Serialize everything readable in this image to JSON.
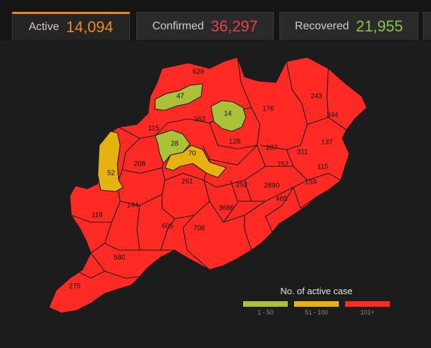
{
  "tabs": [
    {
      "label": "Active",
      "value": "14,094",
      "color": "#f08a1c"
    },
    {
      "label": "Confirmed",
      "value": "36,297",
      "color": "#e8414b"
    },
    {
      "label": "Recovered",
      "value": "21,955",
      "color": "#8cc63f"
    }
  ],
  "colors": {
    "low": "#a9c23a",
    "mid": "#e6b20f",
    "high": "#ff2a23"
  },
  "legend": {
    "title": "No. of active case",
    "items": [
      {
        "label": "1 - 50",
        "color": "#a9c23a"
      },
      {
        "label": "51 - 100",
        "color": "#e6b20f"
      },
      {
        "label": "101+",
        "color": "#ff2a23"
      }
    ]
  },
  "districts": [
    {
      "value": "628",
      "category": "high"
    },
    {
      "value": "47",
      "category": "low"
    },
    {
      "value": "362",
      "category": "high"
    },
    {
      "value": "14",
      "category": "low"
    },
    {
      "value": "176",
      "category": "high"
    },
    {
      "value": "243",
      "category": "high"
    },
    {
      "value": "344",
      "category": "high"
    },
    {
      "value": "115",
      "category": "high"
    },
    {
      "value": "28",
      "category": "low"
    },
    {
      "value": "128",
      "category": "high"
    },
    {
      "value": "207",
      "category": "high"
    },
    {
      "value": "311",
      "category": "high"
    },
    {
      "value": "137",
      "category": "high"
    },
    {
      "value": "52",
      "category": "mid"
    },
    {
      "value": "208",
      "category": "high"
    },
    {
      "value": "70",
      "category": "mid"
    },
    {
      "value": "757",
      "category": "high"
    },
    {
      "value": "115",
      "category": "high"
    },
    {
      "value": "261",
      "category": "high"
    },
    {
      "value": "252",
      "category": "high"
    },
    {
      "value": "2890",
      "category": "high"
    },
    {
      "value": "159",
      "category": "high"
    },
    {
      "value": "118",
      "category": "high"
    },
    {
      "value": "144",
      "category": "high"
    },
    {
      "value": "3686",
      "category": "high"
    },
    {
      "value": "465",
      "category": "high"
    },
    {
      "value": "605",
      "category": "high"
    },
    {
      "value": "708",
      "category": "high"
    },
    {
      "value": "580",
      "category": "high"
    },
    {
      "value": "275",
      "category": "high"
    }
  ]
}
